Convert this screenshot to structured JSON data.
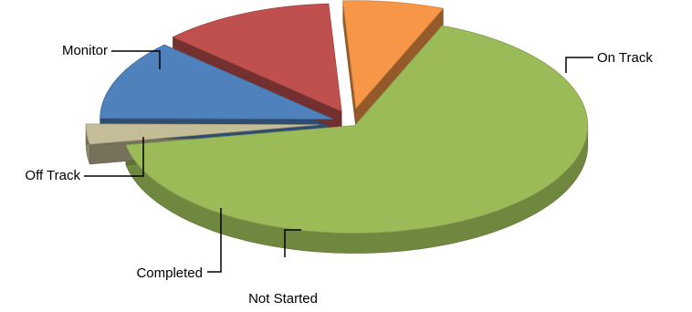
{
  "chart_data": {
    "type": "pie",
    "style": "3d-exploded",
    "slices": [
      {
        "label": "On Track",
        "value": 66,
        "color": "#9BBB59"
      },
      {
        "label": "Not Started",
        "value": 3,
        "color": "#C4BD97"
      },
      {
        "label": "Completed",
        "value": 12,
        "color": "#4F81BD"
      },
      {
        "label": "Off Track",
        "value": 12,
        "color": "#C0504D"
      },
      {
        "label": "Monitor",
        "value": 7,
        "color": "#F79646"
      }
    ],
    "title": "",
    "legend": "none",
    "data_labels": "outside-with-leader-lines"
  }
}
